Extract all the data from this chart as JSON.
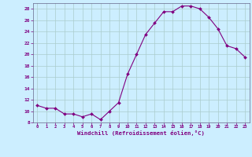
{
  "x": [
    0,
    1,
    2,
    3,
    4,
    5,
    6,
    7,
    8,
    9,
    10,
    11,
    12,
    13,
    14,
    15,
    16,
    17,
    18,
    19,
    20,
    21,
    22,
    23
  ],
  "y": [
    11,
    10.5,
    10.5,
    9.5,
    9.5,
    9,
    9.5,
    8.5,
    10,
    11.5,
    16.5,
    20,
    23.5,
    25.5,
    27.5,
    27.5,
    28.5,
    28.5,
    28,
    26.5,
    24.5,
    21.5,
    21,
    19.5
  ],
  "line_color": "#800080",
  "marker_color": "#800080",
  "bg_color": "#cceeff",
  "grid_color": "#aacccc",
  "xlabel": "Windchill (Refroidissement éolien,°C)",
  "xlabel_color": "#800080",
  "ylim": [
    8,
    29
  ],
  "xlim": [
    -0.5,
    23.5
  ],
  "yticks": [
    8,
    10,
    12,
    14,
    16,
    18,
    20,
    22,
    24,
    26,
    28
  ],
  "xticks": [
    0,
    1,
    2,
    3,
    4,
    5,
    6,
    7,
    8,
    9,
    10,
    11,
    12,
    13,
    14,
    15,
    16,
    17,
    18,
    19,
    20,
    21,
    22,
    23
  ]
}
